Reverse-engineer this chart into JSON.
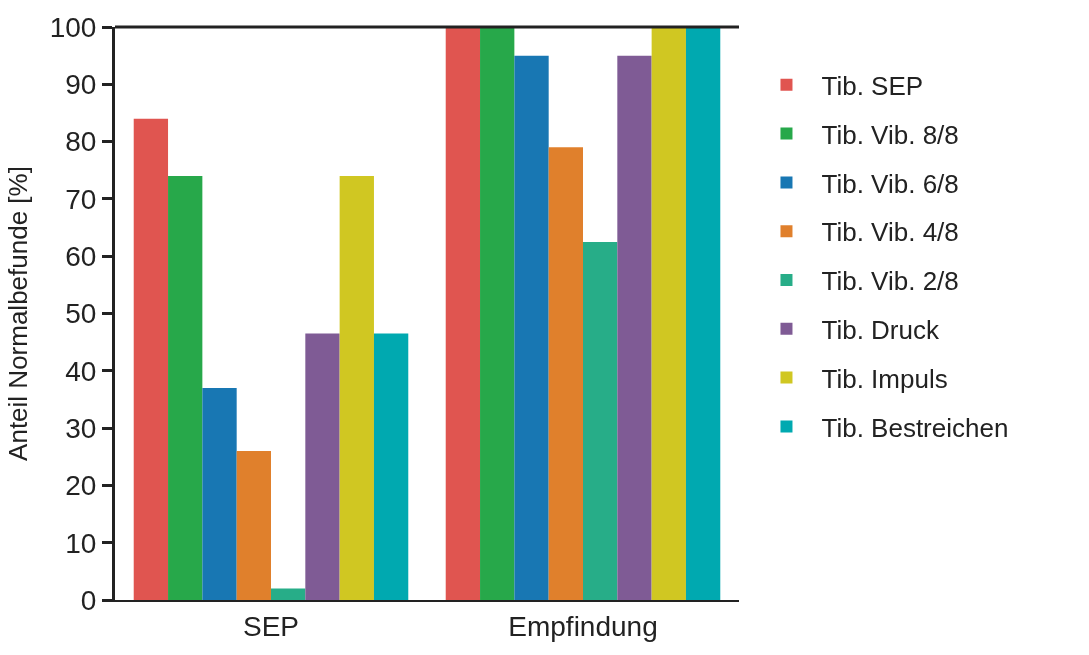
{
  "chart_data": {
    "type": "bar",
    "ylabel": "Anteil Normalbefunde [%]",
    "categories": [
      "SEP",
      "Empfindung"
    ],
    "series": [
      {
        "name": "Tib. SEP",
        "color": "#e05550",
        "values": [
          84,
          100
        ]
      },
      {
        "name": "Tib. Vib. 8/8",
        "color": "#27a84a",
        "values": [
          74,
          100
        ]
      },
      {
        "name": "Tib. Vib. 6/8",
        "color": "#1877b3",
        "values": [
          37,
          95
        ]
      },
      {
        "name": "Tib. Vib. 4/8",
        "color": "#e0802c",
        "values": [
          26,
          79
        ]
      },
      {
        "name": "Tib. Vib. 2/8",
        "color": "#27ad88",
        "values": [
          2,
          62.5
        ]
      },
      {
        "name": "Tib. Druck",
        "color": "#7f5b95",
        "values": [
          46.5,
          95
        ]
      },
      {
        "name": "Tib. Impuls",
        "color": "#d0c722",
        "values": [
          74,
          100
        ]
      },
      {
        "name": "Tib. Bestreichen",
        "color": "#00a9b0",
        "values": [
          46.5,
          100
        ]
      }
    ],
    "ylim": [
      0,
      100
    ],
    "yticks": [
      0,
      10,
      20,
      30,
      40,
      50,
      60,
      70,
      80,
      90,
      100
    ],
    "legend": "right"
  }
}
